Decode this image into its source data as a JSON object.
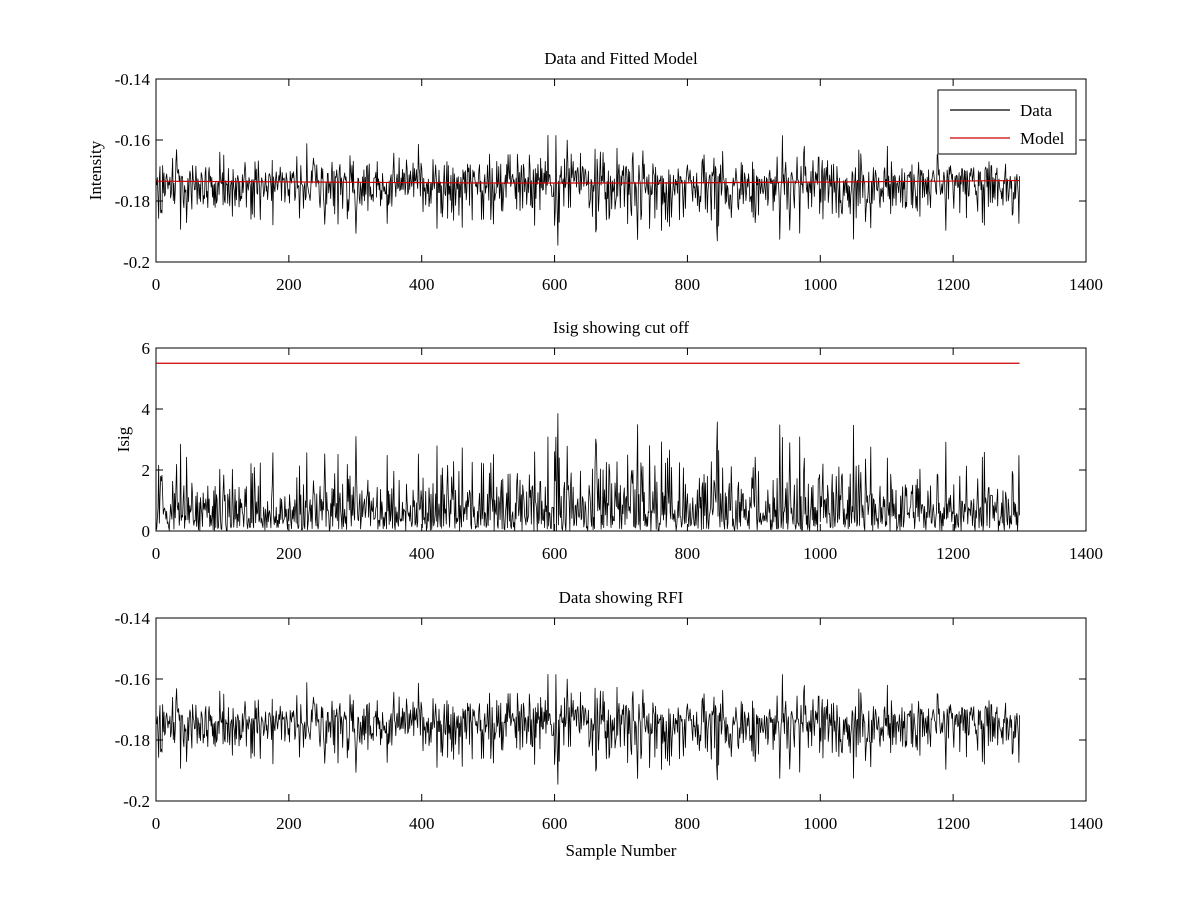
{
  "chart_data": [
    {
      "type": "line",
      "title": "Data and Fitted Model",
      "xlabel": "",
      "ylabel": "Intensity",
      "xlim": [
        0,
        1400
      ],
      "ylim": [
        -0.2,
        -0.14
      ],
      "xticks": [
        0,
        200,
        400,
        600,
        800,
        1000,
        1200,
        1400
      ],
      "yticks": [
        -0.2,
        -0.18,
        -0.16,
        -0.14
      ],
      "xtick_labels": [
        "0",
        "200",
        "400",
        "600",
        "800",
        "1000",
        "1200",
        "1400"
      ],
      "ytick_labels": [
        "-0.2",
        "-0.18",
        "-0.16",
        "-0.14"
      ],
      "legend": {
        "position": "top-right",
        "entries": [
          "Data",
          "Model"
        ]
      },
      "series": [
        {
          "name": "Data",
          "color": "#000000",
          "n": 1300,
          "x_range": [
            1,
            1300
          ],
          "mean": -0.1745,
          "std": 0.0055,
          "min": -0.1945,
          "max": -0.1585,
          "note": "noisy samples"
        },
        {
          "name": "Model",
          "color": "#cc0000",
          "x": [
            1,
            250,
            500,
            750,
            1000,
            1300
          ],
          "values": [
            -0.1735,
            -0.1738,
            -0.1741,
            -0.1741,
            -0.1738,
            -0.1733
          ]
        }
      ],
      "grid": false
    },
    {
      "type": "line",
      "title": "Isig showing cut off",
      "xlabel": "",
      "ylabel": "Isig",
      "xlim": [
        0,
        1400
      ],
      "ylim": [
        0,
        6
      ],
      "xticks": [
        0,
        200,
        400,
        600,
        800,
        1000,
        1200,
        1400
      ],
      "yticks": [
        0,
        2,
        4,
        6
      ],
      "xtick_labels": [
        "0",
        "200",
        "400",
        "600",
        "800",
        "1000",
        "1200",
        "1400"
      ],
      "ytick_labels": [
        "0",
        "2",
        "4",
        "6"
      ],
      "series": [
        {
          "color": "#000000",
          "n": 1300,
          "x_range": [
            1,
            1300
          ],
          "min": 0,
          "max": 3.85,
          "peak_x": 670
        },
        {
          "color": "#cc0000",
          "x": [
            1,
            1300
          ],
          "values": [
            5.5,
            5.5
          ]
        }
      ],
      "grid": false
    },
    {
      "type": "line",
      "title": "Data showing RFI",
      "xlabel": "Sample Number",
      "ylabel": "",
      "xlim": [
        0,
        1400
      ],
      "ylim": [
        -0.2,
        -0.14
      ],
      "xticks": [
        0,
        200,
        400,
        600,
        800,
        1000,
        1200,
        1400
      ],
      "yticks": [
        -0.2,
        -0.18,
        -0.16,
        -0.14
      ],
      "xtick_labels": [
        "0",
        "200",
        "400",
        "600",
        "800",
        "1000",
        "1200",
        "1400"
      ],
      "ytick_labels": [
        "-0.2",
        "-0.18",
        "-0.16",
        "-0.14"
      ],
      "series": [
        {
          "color": "#000000",
          "n": 1300,
          "x_range": [
            1,
            1300
          ],
          "mean": -0.1745,
          "std": 0.0055,
          "min": -0.1945,
          "max": -0.1585
        }
      ],
      "grid": false
    }
  ]
}
